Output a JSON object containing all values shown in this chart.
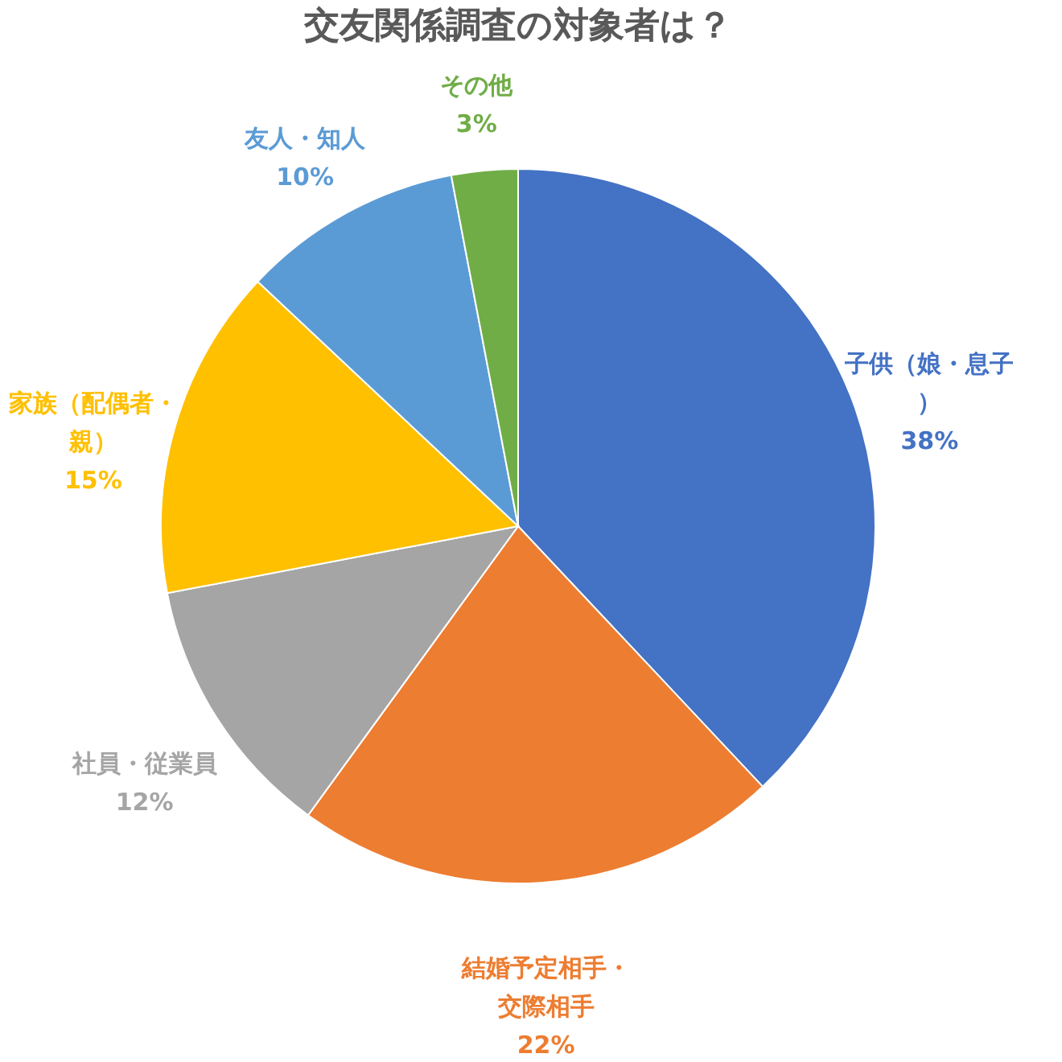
{
  "chart_data": {
    "type": "pie",
    "title": "交友関係調査の対象者は？",
    "categories": [
      "子供（娘・息子）",
      "結婚予定相手・交際相手",
      "社員・従業員",
      "家族（配偶者・親）",
      "友人・知人",
      "その他"
    ],
    "values": [
      38,
      22,
      12,
      15,
      10,
      3
    ],
    "value_labels": [
      "38%",
      "22%",
      "12%",
      "15%",
      "10%",
      "3%"
    ],
    "colors": [
      "#4472c4",
      "#ed7d31",
      "#a5a5a5",
      "#ffc000",
      "#5b9bd5",
      "#70ad47"
    ],
    "legend": false
  }
}
